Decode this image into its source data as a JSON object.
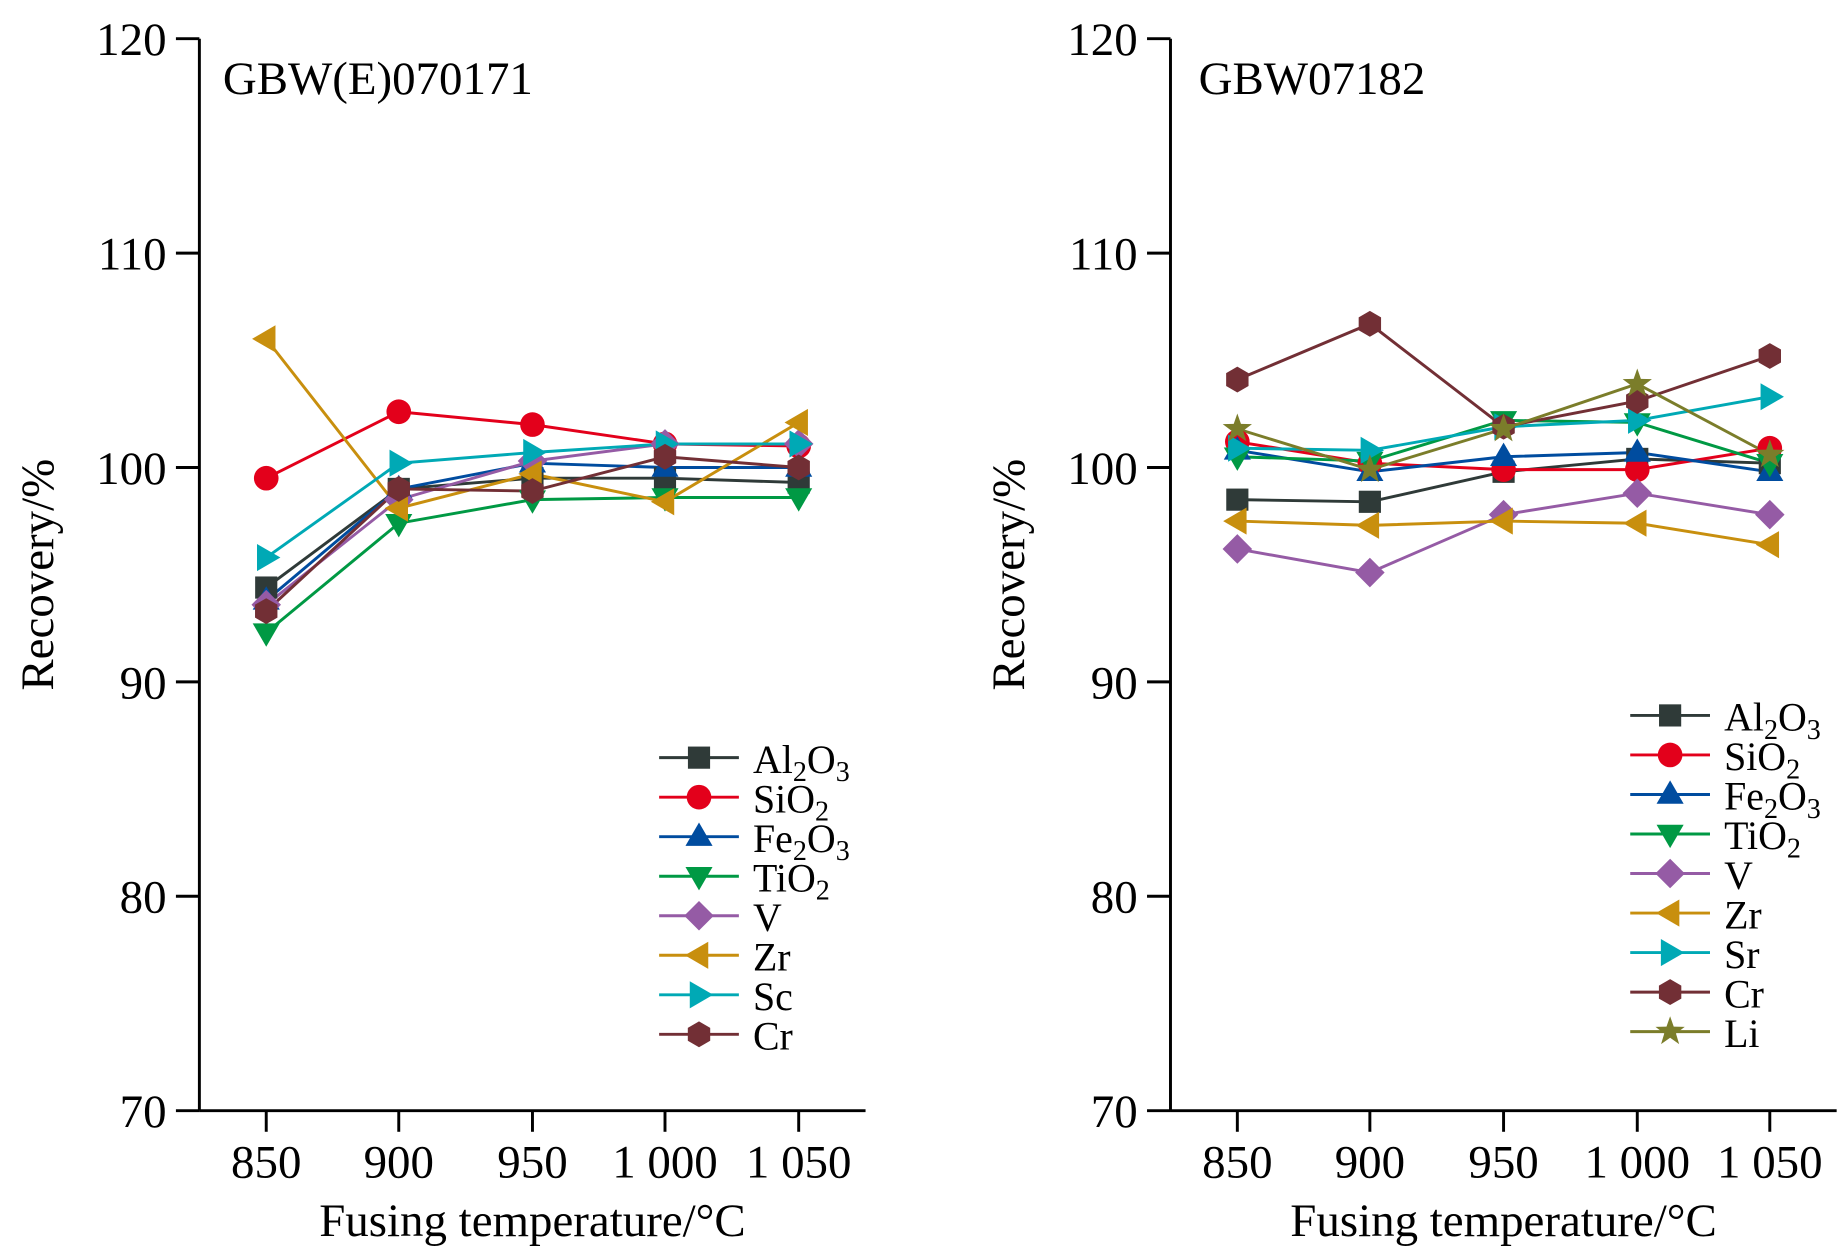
{
  "chart_data": [
    {
      "type": "line",
      "title": "GBW(E)070171",
      "xlabel": "Fusing temperature/°C",
      "ylabel": "Recovery/%",
      "x": [
        850,
        900,
        950,
        1000,
        1050
      ],
      "xtick_labels": [
        "850",
        "900",
        "950",
        "1 000",
        "1 050"
      ],
      "ylim": [
        70,
        120
      ],
      "yticks": [
        70,
        80,
        90,
        100,
        110,
        120
      ],
      "grid": false,
      "legend_position": "bottom-right",
      "series": [
        {
          "name": "Al2O3",
          "label_base": "Al",
          "sub1": "2",
          "mid": "O",
          "sub2": "3",
          "marker": "square",
          "color": "#2f3a38",
          "values": [
            94.4,
            99.0,
            99.5,
            99.5,
            99.3
          ]
        },
        {
          "name": "SiO2",
          "label_base": "SiO",
          "sub1": "2",
          "mid": "",
          "sub2": "",
          "marker": "circle",
          "color": "#e3001b",
          "values": [
            99.5,
            102.6,
            102.0,
            101.1,
            101.0
          ]
        },
        {
          "name": "Fe2O3",
          "label_base": "Fe",
          "sub1": "2",
          "mid": "O",
          "sub2": "3",
          "marker": "triangle-up",
          "color": "#004c9f",
          "values": [
            93.8,
            99.0,
            100.2,
            100.0,
            100.0
          ]
        },
        {
          "name": "TiO2",
          "label_base": "TiO",
          "sub1": "2",
          "mid": "",
          "sub2": "",
          "marker": "triangle-down",
          "color": "#009944",
          "values": [
            92.3,
            97.4,
            98.5,
            98.6,
            98.6
          ]
        },
        {
          "name": "V",
          "label_base": "V",
          "sub1": "",
          "mid": "",
          "sub2": "",
          "marker": "diamond",
          "color": "#955ba5",
          "values": [
            93.6,
            98.5,
            100.3,
            101.1,
            101.1
          ]
        },
        {
          "name": "Zr",
          "label_base": "Zr",
          "sub1": "",
          "mid": "",
          "sub2": "",
          "marker": "triangle-left",
          "color": "#c88f0e",
          "values": [
            106.0,
            98.1,
            99.7,
            98.4,
            102.1
          ]
        },
        {
          "name": "Sc",
          "label_base": "Sc",
          "sub1": "",
          "mid": "",
          "sub2": "",
          "marker": "triangle-right",
          "color": "#00a9b5",
          "values": [
            95.8,
            100.2,
            100.7,
            101.1,
            101.1
          ]
        },
        {
          "name": "Cr",
          "label_base": "Cr",
          "sub1": "",
          "mid": "",
          "sub2": "",
          "marker": "hexagon",
          "color": "#722f35",
          "values": [
            93.3,
            99.0,
            98.9,
            100.5,
            100.0
          ]
        }
      ]
    },
    {
      "type": "line",
      "title": "GBW07182",
      "xlabel": "Fusing temperature/°C",
      "ylabel": "Recovery/%",
      "x": [
        850,
        900,
        950,
        1000,
        1050
      ],
      "xtick_labels": [
        "850",
        "900",
        "950",
        "1 000",
        "1 050"
      ],
      "ylim": [
        70,
        120
      ],
      "yticks": [
        70,
        80,
        90,
        100,
        110,
        120
      ],
      "grid": false,
      "legend_position": "bottom-right",
      "series": [
        {
          "name": "Al2O3",
          "label_base": "Al",
          "sub1": "2",
          "mid": "O",
          "sub2": "3",
          "marker": "square",
          "color": "#2f3a38",
          "values": [
            98.5,
            98.4,
            99.8,
            100.4,
            100.2
          ]
        },
        {
          "name": "SiO2",
          "label_base": "SiO",
          "sub1": "2",
          "mid": "",
          "sub2": "",
          "marker": "circle",
          "color": "#e3001b",
          "values": [
            101.2,
            100.2,
            99.9,
            99.9,
            100.9
          ]
        },
        {
          "name": "Fe2O3",
          "label_base": "Fe",
          "sub1": "2",
          "mid": "O",
          "sub2": "3",
          "marker": "triangle-up",
          "color": "#004c9f",
          "values": [
            100.8,
            99.8,
            100.5,
            100.7,
            99.8
          ]
        },
        {
          "name": "TiO2",
          "label_base": "TiO",
          "sub1": "2",
          "mid": "",
          "sub2": "",
          "marker": "triangle-down",
          "color": "#009944",
          "values": [
            100.5,
            100.3,
            102.2,
            102.1,
            100.2
          ]
        },
        {
          "name": "V",
          "label_base": "V",
          "sub1": "",
          "mid": "",
          "sub2": "",
          "marker": "diamond",
          "color": "#955ba5",
          "values": [
            96.2,
            95.1,
            97.8,
            98.8,
            97.8
          ]
        },
        {
          "name": "Zr",
          "label_base": "Zr",
          "sub1": "",
          "mid": "",
          "sub2": "",
          "marker": "triangle-left",
          "color": "#c88f0e",
          "values": [
            97.5,
            97.3,
            97.5,
            97.4,
            96.4
          ]
        },
        {
          "name": "Sr",
          "label_base": "Sr",
          "sub1": "",
          "mid": "",
          "sub2": "",
          "marker": "triangle-right",
          "color": "#00a9b5",
          "values": [
            100.9,
            100.8,
            101.9,
            102.2,
            103.3
          ]
        },
        {
          "name": "Cr",
          "label_base": "Cr",
          "sub1": "",
          "mid": "",
          "sub2": "",
          "marker": "hexagon",
          "color": "#722f35",
          "values": [
            104.1,
            106.7,
            101.9,
            103.1,
            105.2
          ]
        },
        {
          "name": "Li",
          "label_base": "Li",
          "sub1": "",
          "mid": "",
          "sub2": "",
          "marker": "star",
          "color": "#7b7d2a",
          "values": [
            101.8,
            99.9,
            101.8,
            103.9,
            100.6
          ]
        }
      ]
    }
  ]
}
